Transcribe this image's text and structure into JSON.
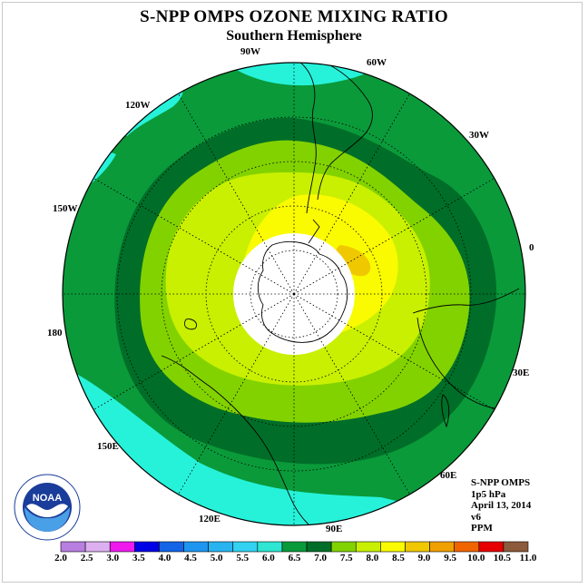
{
  "title": "S-NPP OMPS OZONE MIXING RATIO",
  "subtitle": "Southern Hemisphere",
  "longitude_labels": [
    "90W",
    "60W",
    "30W",
    "0",
    "30E",
    "60E",
    "90E",
    "120E",
    "150E",
    "180",
    "150W",
    "120W"
  ],
  "info": {
    "instrument": "S-NPP OMPS",
    "level": "1p5 hPa",
    "date": "April 13, 2014",
    "version": "v6",
    "units": "PPM"
  },
  "logo": {
    "text": "NOAA",
    "ring_text": "NATIONAL OCEANIC AND ATMOSPHERIC ADMINISTRATION · U.S. DEPARTMENT OF COMMERCE"
  },
  "colorbar": {
    "labels": [
      "2.0",
      "2.5",
      "3.0",
      "3.5",
      "4.0",
      "4.5",
      "5.0",
      "5.5",
      "6.0",
      "6.5",
      "7.0",
      "7.5",
      "8.0",
      "8.5",
      "9.0",
      "9.5",
      "10.0",
      "10.5",
      "11.0"
    ],
    "colors": [
      "#b87ee0",
      "#dcb0f0",
      "#ee1aee",
      "#0000e6",
      "#1464e6",
      "#1e96f0",
      "#28b4f0",
      "#32d2f0",
      "#2ee6d2",
      "#0a9a3a",
      "#006e28",
      "#82d200",
      "#c8f000",
      "#fafa00",
      "#f0c800",
      "#f0a000",
      "#f06400",
      "#e60000",
      "#8c5a3c"
    ]
  },
  "map_colors": {
    "ocean_cyan": "#26f2da",
    "green_mid": "#0a9a3a",
    "green_dark": "#006e28",
    "lime": "#82d200",
    "yellow_green": "#c8f000",
    "yellow": "#fafa00",
    "orange": "#f0c800",
    "polar_night": "#ffffff"
  }
}
